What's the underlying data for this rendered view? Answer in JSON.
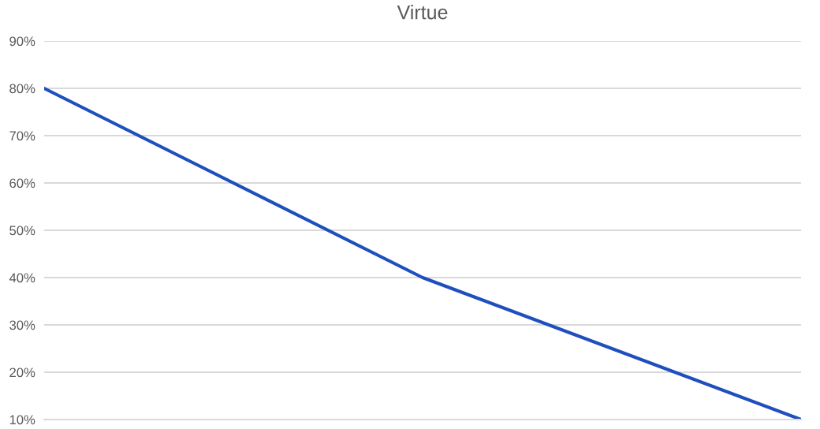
{
  "chart_data": {
    "type": "line",
    "title": "Virtue",
    "categories": [
      null,
      null,
      null
    ],
    "series": [
      {
        "color": "#1f4fbf",
        "values": [
          80,
          40,
          10
        ]
      }
    ],
    "ylim": [
      10,
      90
    ],
    "yticks": [
      {
        "value": 10,
        "label": "10%"
      },
      {
        "value": 20,
        "label": "20%"
      },
      {
        "value": 30,
        "label": "30%"
      },
      {
        "value": 40,
        "label": "40%"
      },
      {
        "value": 50,
        "label": "50%"
      },
      {
        "value": 60,
        "label": "60%"
      },
      {
        "value": 70,
        "label": "70%"
      },
      {
        "value": 80,
        "label": "80%"
      },
      {
        "value": 90,
        "label": "90%"
      }
    ],
    "grid": "y",
    "marker": "none",
    "line_style": "solid",
    "legend": false,
    "tick_labels": "y"
  }
}
